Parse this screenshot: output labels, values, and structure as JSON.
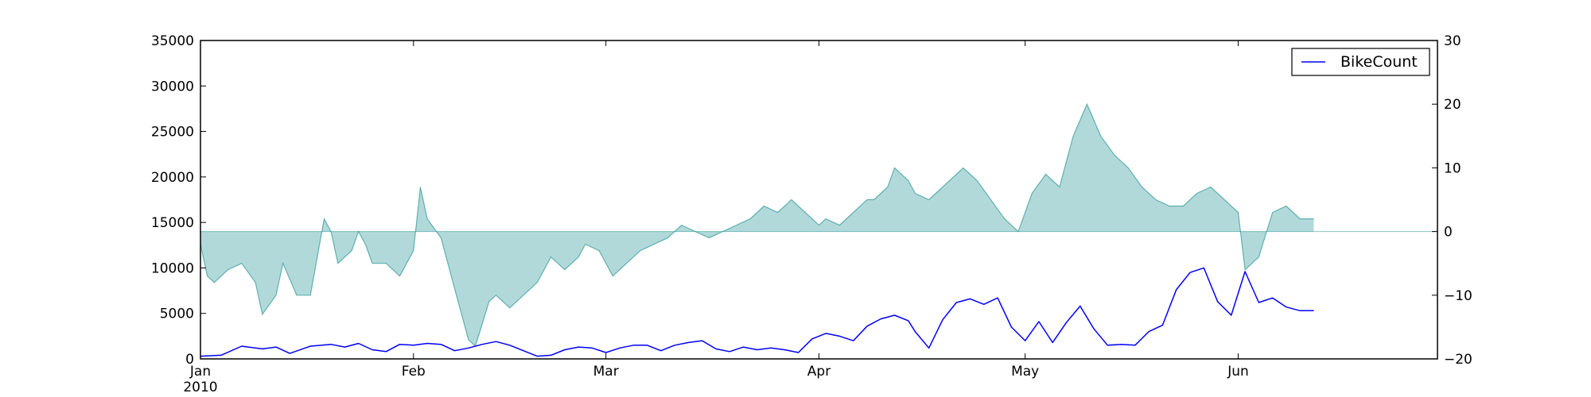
{
  "chart_data": {
    "type": "line",
    "x_axis": {
      "ticks": [
        {
          "date": "2010-01-01",
          "label": "Jan",
          "sublabel": "2010"
        },
        {
          "date": "2010-02-01",
          "label": "Feb"
        },
        {
          "date": "2010-03-01",
          "label": "Mar"
        },
        {
          "date": "2010-04-01",
          "label": "Apr"
        },
        {
          "date": "2010-05-01",
          "label": "May"
        },
        {
          "date": "2010-06-01",
          "label": "Jun"
        }
      ],
      "range": [
        "2010-01-01",
        "2010-06-30"
      ]
    },
    "y_left": {
      "ylim": [
        0,
        35000
      ],
      "ticks": [
        0,
        5000,
        10000,
        15000,
        20000,
        25000,
        30000,
        35000
      ]
    },
    "y_right": {
      "ylim": [
        -20,
        30
      ],
      "ticks": [
        -20,
        -10,
        0,
        10,
        20,
        30
      ]
    },
    "legend": {
      "position": "top-right",
      "entries": [
        {
          "label": "BikeCount",
          "color": "#0000ff"
        }
      ]
    },
    "grid": false,
    "series": [
      {
        "name": "BikeCount",
        "type": "line",
        "axis": "left",
        "color": "#0000ff",
        "points": [
          [
            "2010-01-01",
            300
          ],
          [
            "2010-01-04",
            400
          ],
          [
            "2010-01-07",
            1400
          ],
          [
            "2010-01-10",
            1100
          ],
          [
            "2010-01-12",
            1300
          ],
          [
            "2010-01-14",
            600
          ],
          [
            "2010-01-17",
            1400
          ],
          [
            "2010-01-20",
            1600
          ],
          [
            "2010-01-22",
            1300
          ],
          [
            "2010-01-24",
            1700
          ],
          [
            "2010-01-26",
            1000
          ],
          [
            "2010-01-28",
            800
          ],
          [
            "2010-01-30",
            1600
          ],
          [
            "2010-02-01",
            1500
          ],
          [
            "2010-02-03",
            1700
          ],
          [
            "2010-02-05",
            1600
          ],
          [
            "2010-02-07",
            900
          ],
          [
            "2010-02-09",
            1200
          ],
          [
            "2010-02-11",
            1600
          ],
          [
            "2010-02-13",
            1900
          ],
          [
            "2010-02-15",
            1500
          ],
          [
            "2010-02-17",
            900
          ],
          [
            "2010-02-19",
            300
          ],
          [
            "2010-02-21",
            400
          ],
          [
            "2010-02-23",
            1000
          ],
          [
            "2010-02-25",
            1300
          ],
          [
            "2010-02-27",
            1200
          ],
          [
            "2010-03-01",
            700
          ],
          [
            "2010-03-03",
            1200
          ],
          [
            "2010-03-05",
            1500
          ],
          [
            "2010-03-07",
            1500
          ],
          [
            "2010-03-09",
            900
          ],
          [
            "2010-03-11",
            1500
          ],
          [
            "2010-03-13",
            1800
          ],
          [
            "2010-03-15",
            2000
          ],
          [
            "2010-03-17",
            1100
          ],
          [
            "2010-03-19",
            800
          ],
          [
            "2010-03-21",
            1300
          ],
          [
            "2010-03-23",
            1000
          ],
          [
            "2010-03-25",
            1200
          ],
          [
            "2010-03-27",
            1000
          ],
          [
            "2010-03-29",
            700
          ],
          [
            "2010-03-31",
            2200
          ],
          [
            "2010-04-02",
            2800
          ],
          [
            "2010-04-04",
            2500
          ],
          [
            "2010-04-06",
            2000
          ],
          [
            "2010-04-08",
            3600
          ],
          [
            "2010-04-10",
            4400
          ],
          [
            "2010-04-12",
            4800
          ],
          [
            "2010-04-14",
            4200
          ],
          [
            "2010-04-15",
            3000
          ],
          [
            "2010-04-17",
            1200
          ],
          [
            "2010-04-19",
            4300
          ],
          [
            "2010-04-21",
            6200
          ],
          [
            "2010-04-23",
            6600
          ],
          [
            "2010-04-25",
            6000
          ],
          [
            "2010-04-27",
            6700
          ],
          [
            "2010-04-29",
            3500
          ],
          [
            "2010-05-01",
            2000
          ],
          [
            "2010-05-03",
            4100
          ],
          [
            "2010-05-05",
            1800
          ],
          [
            "2010-05-07",
            4000
          ],
          [
            "2010-05-09",
            5800
          ],
          [
            "2010-05-11",
            3300
          ],
          [
            "2010-05-13",
            1500
          ],
          [
            "2010-05-15",
            1600
          ],
          [
            "2010-05-17",
            1500
          ],
          [
            "2010-05-19",
            3000
          ],
          [
            "2010-05-21",
            3700
          ],
          [
            "2010-05-23",
            7600
          ],
          [
            "2010-05-25",
            9500
          ],
          [
            "2010-05-27",
            10000
          ],
          [
            "2010-05-29",
            6300
          ],
          [
            "2010-05-31",
            4800
          ],
          [
            "2010-06-02",
            9600
          ],
          [
            "2010-06-04",
            6200
          ],
          [
            "2010-06-06",
            6700
          ],
          [
            "2010-06-08",
            5700
          ],
          [
            "2010-06-10",
            5300
          ],
          [
            "2010-06-12",
            5300
          ]
        ]
      },
      {
        "name": "",
        "type": "area",
        "axis": "right",
        "baseline": 0,
        "color": "#008080",
        "points": [
          [
            "2010-01-01",
            -2
          ],
          [
            "2010-01-02",
            -7
          ],
          [
            "2010-01-03",
            -8
          ],
          [
            "2010-01-05",
            -6
          ],
          [
            "2010-01-07",
            -5
          ],
          [
            "2010-01-09",
            -8
          ],
          [
            "2010-01-10",
            -13
          ],
          [
            "2010-01-12",
            -10
          ],
          [
            "2010-01-13",
            -5
          ],
          [
            "2010-01-15",
            -10
          ],
          [
            "2010-01-17",
            -10
          ],
          [
            "2010-01-19",
            2
          ],
          [
            "2010-01-20",
            0
          ],
          [
            "2010-01-21",
            -5
          ],
          [
            "2010-01-23",
            -3
          ],
          [
            "2010-01-24",
            0
          ],
          [
            "2010-01-25",
            -2
          ],
          [
            "2010-01-26",
            -5
          ],
          [
            "2010-01-28",
            -5
          ],
          [
            "2010-01-30",
            -7
          ],
          [
            "2010-02-01",
            -3
          ],
          [
            "2010-02-02",
            7
          ],
          [
            "2010-02-03",
            2
          ],
          [
            "2010-02-05",
            -1
          ],
          [
            "2010-02-07",
            -9
          ],
          [
            "2010-02-09",
            -17
          ],
          [
            "2010-02-10",
            -18
          ],
          [
            "2010-02-12",
            -11
          ],
          [
            "2010-02-13",
            -10
          ],
          [
            "2010-02-15",
            -12
          ],
          [
            "2010-02-17",
            -10
          ],
          [
            "2010-02-19",
            -8
          ],
          [
            "2010-02-21",
            -4
          ],
          [
            "2010-02-23",
            -6
          ],
          [
            "2010-02-25",
            -4
          ],
          [
            "2010-02-26",
            -2
          ],
          [
            "2010-02-28",
            -3
          ],
          [
            "2010-03-02",
            -7
          ],
          [
            "2010-03-04",
            -5
          ],
          [
            "2010-03-06",
            -3
          ],
          [
            "2010-03-08",
            -2
          ],
          [
            "2010-03-10",
            -1
          ],
          [
            "2010-03-12",
            1
          ],
          [
            "2010-03-14",
            0
          ],
          [
            "2010-03-16",
            -1
          ],
          [
            "2010-03-18",
            0
          ],
          [
            "2010-03-20",
            1
          ],
          [
            "2010-03-22",
            2
          ],
          [
            "2010-03-24",
            4
          ],
          [
            "2010-03-26",
            3
          ],
          [
            "2010-03-28",
            5
          ],
          [
            "2010-03-30",
            3
          ],
          [
            "2010-04-01",
            1
          ],
          [
            "2010-04-02",
            2
          ],
          [
            "2010-04-04",
            1
          ],
          [
            "2010-04-06",
            3
          ],
          [
            "2010-04-08",
            5
          ],
          [
            "2010-04-09",
            5
          ],
          [
            "2010-04-11",
            7
          ],
          [
            "2010-04-12",
            10
          ],
          [
            "2010-04-14",
            8
          ],
          [
            "2010-04-15",
            6
          ],
          [
            "2010-04-17",
            5
          ],
          [
            "2010-04-19",
            7
          ],
          [
            "2010-04-21",
            9
          ],
          [
            "2010-04-22",
            10
          ],
          [
            "2010-04-24",
            8
          ],
          [
            "2010-04-26",
            5
          ],
          [
            "2010-04-28",
            2
          ],
          [
            "2010-04-30",
            0
          ],
          [
            "2010-05-02",
            6
          ],
          [
            "2010-05-04",
            9
          ],
          [
            "2010-05-06",
            7
          ],
          [
            "2010-05-08",
            15
          ],
          [
            "2010-05-10",
            20
          ],
          [
            "2010-05-12",
            15
          ],
          [
            "2010-05-14",
            12
          ],
          [
            "2010-05-16",
            10
          ],
          [
            "2010-05-18",
            7
          ],
          [
            "2010-05-20",
            5
          ],
          [
            "2010-05-22",
            4
          ],
          [
            "2010-05-24",
            4
          ],
          [
            "2010-05-26",
            6
          ],
          [
            "2010-05-28",
            7
          ],
          [
            "2010-05-30",
            5
          ],
          [
            "2010-06-01",
            3
          ],
          [
            "2010-06-02",
            -6
          ],
          [
            "2010-06-04",
            -4
          ],
          [
            "2010-06-06",
            3
          ],
          [
            "2010-06-08",
            4
          ],
          [
            "2010-06-10",
            2
          ],
          [
            "2010-06-12",
            2
          ]
        ]
      }
    ]
  }
}
